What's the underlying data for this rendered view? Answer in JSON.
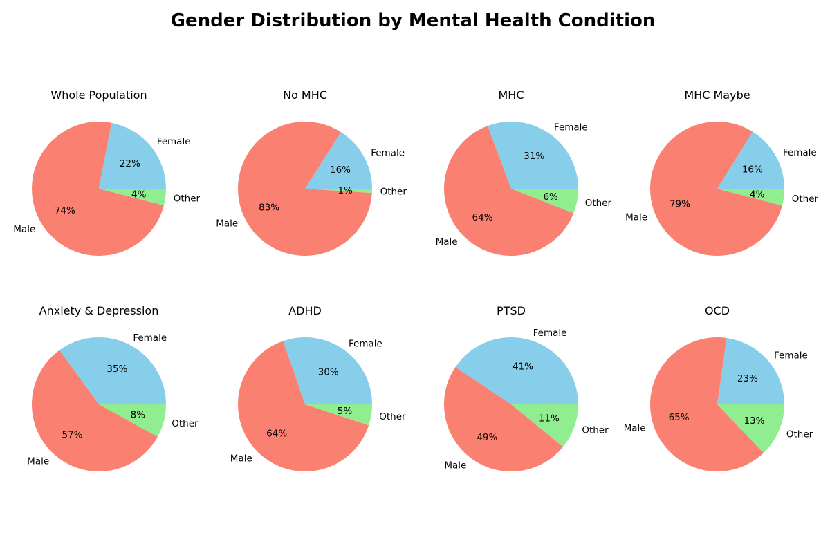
{
  "chart_data": {
    "type": "pie",
    "title": "Gender Distribution by Mental Health Condition",
    "categories": [
      "Female",
      "Male",
      "Other"
    ],
    "colors": {
      "Female": "#87CEEB",
      "Male": "#FA8072",
      "Other": "#90EE90"
    },
    "grid": [
      2,
      4
    ],
    "pies": [
      {
        "title": "Whole Population",
        "values": [
          22,
          74,
          4
        ],
        "pct_labels": [
          "22%",
          "74%",
          "4%"
        ]
      },
      {
        "title": "No MHC",
        "values": [
          16,
          83,
          1
        ],
        "pct_labels": [
          "16%",
          "83%",
          "1%"
        ]
      },
      {
        "title": "MHC",
        "values": [
          31,
          64,
          6
        ],
        "pct_labels": [
          "31%",
          "64%",
          "6%"
        ]
      },
      {
        "title": "MHC Maybe",
        "values": [
          16,
          79,
          4
        ],
        "pct_labels": [
          "16%",
          "79%",
          "4%"
        ]
      },
      {
        "title": "Anxiety & Depression",
        "values": [
          35,
          57,
          8
        ],
        "pct_labels": [
          "35%",
          "57%",
          "8%"
        ]
      },
      {
        "title": "ADHD",
        "values": [
          30,
          64,
          5
        ],
        "pct_labels": [
          "30%",
          "64%",
          "5%"
        ]
      },
      {
        "title": "PTSD",
        "values": [
          41,
          49,
          11
        ],
        "pct_labels": [
          "41%",
          "49%",
          "11%"
        ]
      },
      {
        "title": "OCD",
        "values": [
          23,
          65,
          13
        ],
        "pct_labels": [
          "23%",
          "65%",
          "13%"
        ]
      }
    ]
  }
}
